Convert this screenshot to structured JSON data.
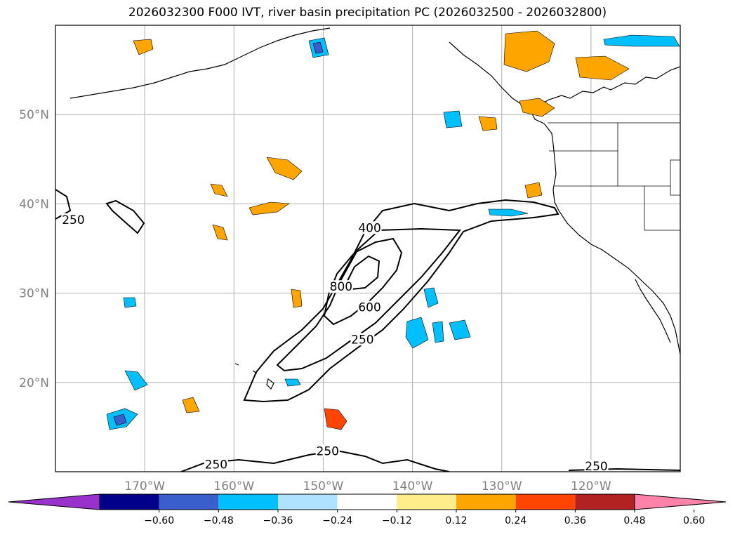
{
  "title": "2026032300 F000 IVT, river basin precipitation PC (2026032500 - 2026032800)",
  "map": {
    "lon_range": [
      -180,
      -110
    ],
    "lat_range": [
      10,
      60
    ],
    "lon_ticks": [
      {
        "value": -170,
        "label": "170°W"
      },
      {
        "value": -160,
        "label": "160°W"
      },
      {
        "value": -150,
        "label": "150°W"
      },
      {
        "value": -140,
        "label": "140°W"
      },
      {
        "value": -130,
        "label": "130°W"
      },
      {
        "value": -120,
        "label": "120°W"
      }
    ],
    "lat_ticks": [
      {
        "value": 20,
        "label": "20°N"
      },
      {
        "value": 30,
        "label": "30°N"
      },
      {
        "value": 40,
        "label": "40°N"
      },
      {
        "value": 50,
        "label": "50°N"
      }
    ],
    "grid": true,
    "contour_labels": [
      {
        "text": "250",
        "lon": -178,
        "lat": 38
      },
      {
        "text": "400",
        "lon": -144.8,
        "lat": 37.1
      },
      {
        "text": "800",
        "lon": -148,
        "lat": 30.5
      },
      {
        "text": "600",
        "lon": -144.8,
        "lat": 28.2
      },
      {
        "text": "250",
        "lon": -145.6,
        "lat": 24.6
      },
      {
        "text": "250",
        "lon": -149.5,
        "lat": 12.1
      },
      {
        "text": "250",
        "lon": -162,
        "lat": 10.6
      },
      {
        "text": "250",
        "lon": -119.4,
        "lat": 10.4
      }
    ]
  },
  "colorbar": {
    "colors": [
      "#9932cc",
      "#00008b",
      "#3a5fcd",
      "#00bfff",
      "#b0e2ff",
      "#ffffff",
      "#ffec8b",
      "#ffa500",
      "#ff4500",
      "#b22222",
      "#ff82ab"
    ],
    "tick_labels": [
      "−0.60",
      "−0.48",
      "−0.36",
      "−0.24",
      "−0.12",
      "0.12",
      "0.24",
      "0.36",
      "0.48",
      "0.60"
    ],
    "extend": "both"
  }
}
